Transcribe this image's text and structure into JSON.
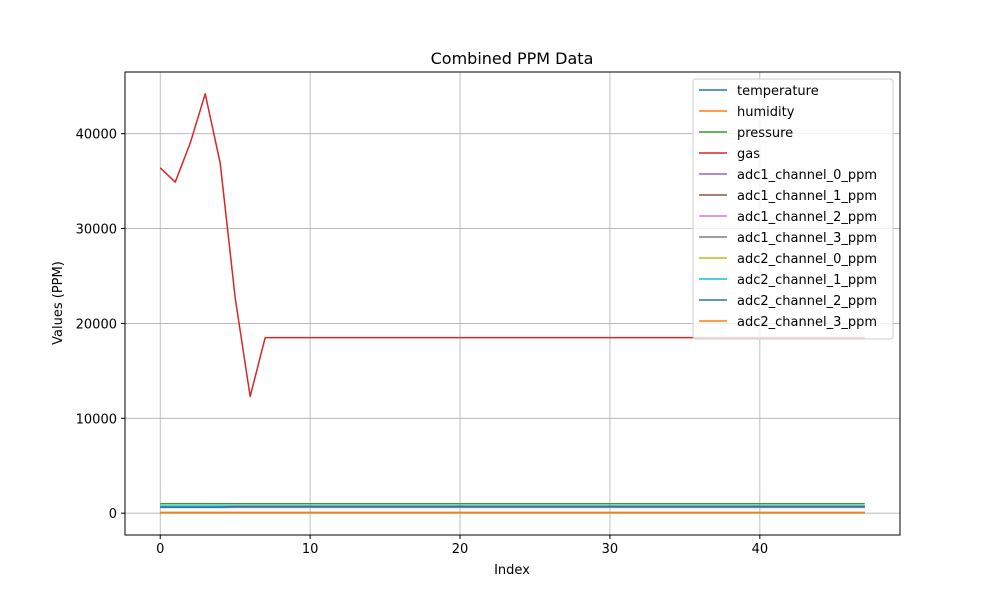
{
  "chart_data": {
    "type": "line",
    "title": "Combined PPM Data",
    "xlabel": "Index",
    "ylabel": "Values (PPM)",
    "xlim": [
      -2.35,
      49.35
    ],
    "ylim": [
      -2300,
      46500
    ],
    "xticks": [
      0,
      10,
      20,
      30,
      40
    ],
    "yticks": [
      0,
      10000,
      20000,
      30000,
      40000
    ],
    "grid": true,
    "legend_position": "top-right",
    "x_count": 48,
    "series": [
      {
        "name": "temperature",
        "color": "#1f77b4",
        "values": [
          26
        ]
      },
      {
        "name": "humidity",
        "color": "#ff7f0e",
        "values": [
          45
        ]
      },
      {
        "name": "pressure",
        "color": "#2ca02c",
        "values": [
          1000
        ]
      },
      {
        "name": "gas",
        "color": "#d62728",
        "values": [
          36400,
          34900,
          39000,
          44200,
          36900,
          22700,
          12300,
          18500
        ]
      },
      {
        "name": "adc1_channel_0_ppm",
        "color": "#9467bd",
        "values": [
          700
        ]
      },
      {
        "name": "adc1_channel_1_ppm",
        "color": "#8c564b",
        "values": [
          650
        ]
      },
      {
        "name": "adc1_channel_2_ppm",
        "color": "#e377c2",
        "values": [
          600
        ]
      },
      {
        "name": "adc1_channel_3_ppm",
        "color": "#7f7f7f",
        "values": [
          650
        ]
      },
      {
        "name": "adc2_channel_0_ppm",
        "color": "#bcbd22",
        "values": [
          700
        ]
      },
      {
        "name": "adc2_channel_1_ppm",
        "color": "#17becf",
        "values": [
          750
        ]
      },
      {
        "name": "adc2_channel_2_ppm",
        "color": "#1f77b4",
        "values": [
          620,
          620,
          620,
          620,
          620,
          700
        ]
      },
      {
        "name": "adc2_channel_3_ppm",
        "color": "#ff7f0e",
        "values": [
          80
        ]
      }
    ]
  }
}
